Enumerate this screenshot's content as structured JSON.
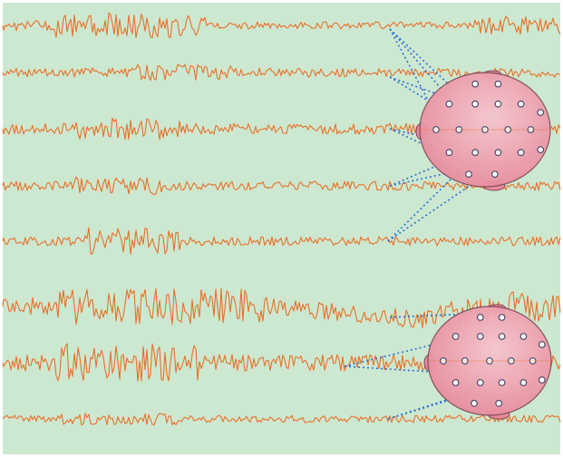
{
  "image": {
    "description": "",
    "colors": {
      "background": "#cde8d0",
      "frame": "#ffffff",
      "trace": "#e8702a",
      "link": "#2a6fd6",
      "head_fill": "#e8899a",
      "head_fill_light": "#f6c6cf",
      "head_stroke": "#7a4a5a",
      "electrode_fill": "#ffffff",
      "electrode_stroke": "#4a4a6a"
    },
    "traces": [
      {
        "id": "trace-1",
        "amplitude": "high-early"
      },
      {
        "id": "trace-2",
        "amplitude": "low"
      },
      {
        "id": "trace-3",
        "amplitude": "medium"
      },
      {
        "id": "trace-4",
        "amplitude": "low"
      },
      {
        "id": "trace-5",
        "amplitude": "medium-burst"
      },
      {
        "id": "trace-6",
        "amplitude": "high"
      },
      {
        "id": "trace-7",
        "amplitude": "high"
      },
      {
        "id": "trace-8",
        "amplitude": "low"
      }
    ],
    "heads": [
      {
        "id": "head-top",
        "electrodes": 19,
        "links": 10
      },
      {
        "id": "head-bottom",
        "electrodes": 19,
        "links": 6
      }
    ]
  }
}
